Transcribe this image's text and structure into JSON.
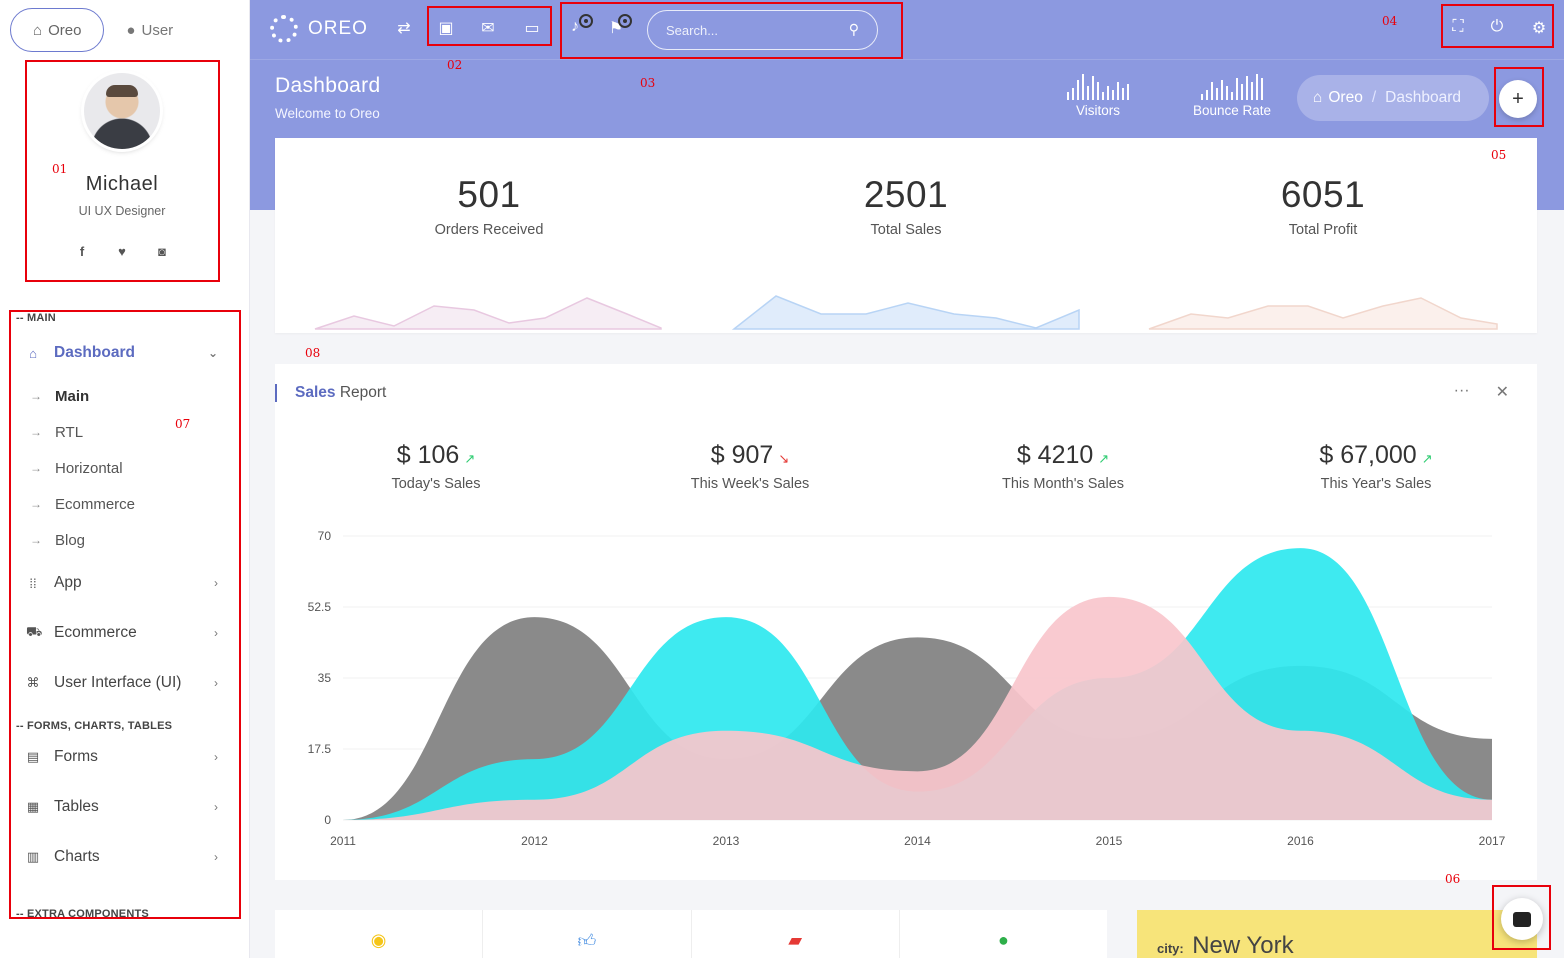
{
  "sidebar": {
    "tabs": [
      {
        "label": "Oreo",
        "icon": "home-icon",
        "active": true
      },
      {
        "label": "User",
        "icon": "user-icon",
        "active": false
      }
    ],
    "profile": {
      "name": "Michael",
      "role": "UI UX Designer",
      "socials": [
        "facebook-icon",
        "twitter-icon",
        "instagram-icon"
      ]
    },
    "sections": [
      {
        "header": "-- MAIN"
      },
      {
        "header": "-- FORMS, CHARTS, TABLES"
      },
      {
        "header": "-- EXTRA COMPONENTS"
      }
    ],
    "items": {
      "dashboard": "Dashboard",
      "sub": [
        "Main",
        "RTL",
        "Horizontal",
        "Ecommerce",
        "Blog"
      ],
      "app": "App",
      "ecommerce": "Ecommerce",
      "ui": "User Interface (UI)",
      "forms": "Forms",
      "tables": "Tables",
      "charts": "Charts"
    }
  },
  "topbar": {
    "brand": "OREO",
    "search_placeholder": "Search...",
    "icons": [
      "swap-icon",
      "calendar-icon",
      "mail-icon",
      "contact-card-icon",
      "bell-icon",
      "flag-icon",
      "search-icon",
      "fullscreen-icon",
      "power-icon",
      "settings-icon"
    ]
  },
  "header": {
    "title": "Dashboard",
    "subtitle": "Welcome to Oreo",
    "mini_stats": [
      {
        "label": "Visitors"
      },
      {
        "label": "Bounce Rate"
      }
    ],
    "breadcrumb": {
      "root": "Oreo",
      "sep": "/",
      "current": "Dashboard"
    },
    "plus": "+"
  },
  "stats": [
    {
      "value": "501",
      "label": "Orders Received",
      "color": "#e8c8e0"
    },
    {
      "value": "2501",
      "label": "Total Sales",
      "color": "#b8d4f5"
    },
    {
      "value": "6051",
      "label": "Total Profit",
      "color": "#f1d6cc"
    }
  ],
  "sales_report": {
    "title_bold": "Sales",
    "title_rest": " Report",
    "kpis": [
      {
        "value": "$ 106",
        "label": "Today's Sales",
        "trend": "up"
      },
      {
        "value": "$ 907",
        "label": "This Week's Sales",
        "trend": "down"
      },
      {
        "value": "$ 4210",
        "label": "This Month's Sales",
        "trend": "up"
      },
      {
        "value": "$ 67,000",
        "label": "This Year's Sales",
        "trend": "up"
      }
    ]
  },
  "chart_data": {
    "type": "area",
    "x": [
      "2011",
      "2012",
      "2013",
      "2014",
      "2015",
      "2016",
      "2017"
    ],
    "yticks": [
      "0",
      "17.5",
      "35",
      "52.5",
      "70"
    ],
    "ylim": [
      0,
      70
    ],
    "series": [
      {
        "color": "#8a8a8a",
        "values": [
          0,
          50,
          15,
          45,
          20,
          38,
          20
        ]
      },
      {
        "color": "#2ee8ef",
        "values": [
          0,
          15,
          50,
          7,
          35,
          67,
          5
        ]
      },
      {
        "color": "#f8c6cc",
        "values": [
          0,
          5,
          22,
          12,
          55,
          22,
          5
        ]
      }
    ]
  },
  "bottom": {
    "icons": [
      "eye-icon",
      "thumbs-up-icon",
      "comment-icon",
      "user-icon"
    ],
    "city_key": "city:",
    "city_value": "New York"
  },
  "annotations": [
    "01",
    "02",
    "03",
    "04",
    "05",
    "06",
    "07",
    "08"
  ]
}
